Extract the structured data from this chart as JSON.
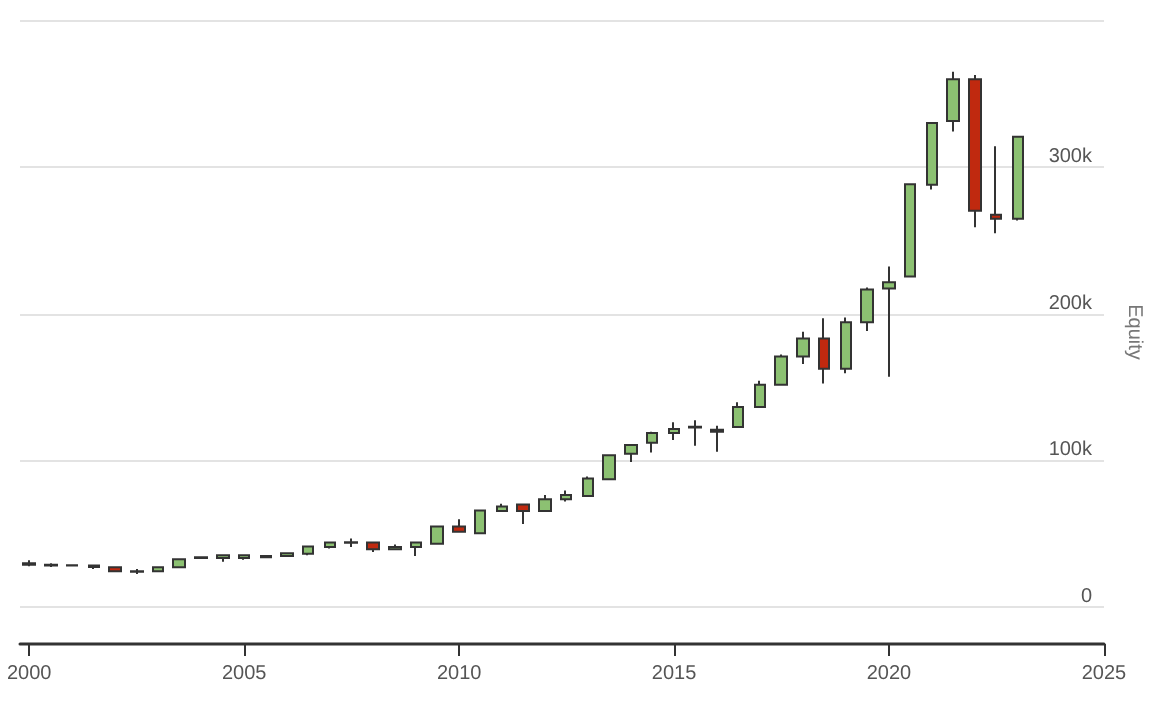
{
  "chart_data": {
    "type": "candlestick",
    "ylabel": "Equity",
    "x": [
      "2000-01",
      "2000-07",
      "2001-01",
      "2001-07",
      "2002-01",
      "2002-07",
      "2003-01",
      "2003-07",
      "2004-01",
      "2004-07",
      "2005-01",
      "2005-07",
      "2006-01",
      "2006-07",
      "2007-01",
      "2007-07",
      "2008-01",
      "2008-07",
      "2009-01",
      "2009-07",
      "2010-01",
      "2010-07",
      "2011-01",
      "2011-07",
      "2012-01",
      "2012-07",
      "2013-01",
      "2013-07",
      "2014-01",
      "2014-07",
      "2015-01",
      "2015-07",
      "2016-01",
      "2016-07",
      "2017-01",
      "2017-07",
      "2018-01",
      "2018-07",
      "2019-01",
      "2019-07",
      "2020-01",
      "2020-07",
      "2021-01",
      "2021-07",
      "2022-01",
      "2022-07",
      "2023-01"
    ],
    "ohlc": [
      [
        29000,
        32000,
        28000,
        30000
      ],
      [
        28500,
        30000,
        27500,
        29000
      ],
      [
        28500,
        29000,
        28000,
        28600
      ],
      [
        28500,
        29000,
        26000,
        27500
      ],
      [
        27300,
        27500,
        24500,
        24500
      ],
      [
        24500,
        26000,
        22700,
        24200
      ],
      [
        24500,
        27500,
        24000,
        27300
      ],
      [
        27300,
        33000,
        27000,
        32700
      ],
      [
        33500,
        34000,
        33000,
        34000
      ],
      [
        33600,
        35500,
        31000,
        35500
      ],
      [
        33600,
        35500,
        32300,
        35500
      ],
      [
        34000,
        35500,
        33600,
        35000
      ],
      [
        35000,
        36800,
        35000,
        36800
      ],
      [
        36400,
        41400,
        35500,
        41400
      ],
      [
        41000,
        44500,
        40000,
        44100
      ],
      [
        44000,
        46800,
        41000,
        44300
      ],
      [
        44100,
        44100,
        37700,
        39500
      ],
      [
        39500,
        42700,
        39500,
        41000
      ],
      [
        41000,
        44100,
        35000,
        44100
      ],
      [
        43200,
        55000,
        42700,
        55000
      ],
      [
        55000,
        60000,
        51000,
        51400
      ],
      [
        50500,
        65900,
        50500,
        65900
      ],
      [
        65500,
        70500,
        65000,
        68600
      ],
      [
        70000,
        70500,
        56800,
        65500
      ],
      [
        65500,
        76400,
        65500,
        73600
      ],
      [
        73600,
        79500,
        72000,
        76400
      ],
      [
        75800,
        89000,
        75800,
        87700
      ],
      [
        87200,
        103600,
        87200,
        103600
      ],
      [
        104600,
        110500,
        99000,
        110500
      ],
      [
        112000,
        119600,
        105500,
        118700
      ],
      [
        118700,
        126000,
        114000,
        121500
      ],
      [
        122500,
        127400,
        110000,
        123000
      ],
      [
        119600,
        123700,
        106000,
        121000
      ],
      [
        122800,
        139700,
        122800,
        136500
      ],
      [
        136500,
        154300,
        136500,
        151600
      ],
      [
        151600,
        172100,
        151600,
        170800
      ],
      [
        170800,
        187700,
        165700,
        183100
      ],
      [
        183100,
        196800,
        152500,
        162500
      ],
      [
        162500,
        197300,
        159400,
        194100
      ],
      [
        194100,
        217800,
        188100,
        216400
      ],
      [
        217200,
        232100,
        157000,
        221300
      ],
      [
        225300,
        288200,
        225300,
        288200
      ],
      [
        287800,
        329900,
        284600,
        329900
      ],
      [
        331200,
        364700,
        324000,
        359700
      ],
      [
        359700,
        362500,
        258800,
        270100
      ],
      [
        267400,
        314000,
        254800,
        264700
      ],
      [
        264700,
        320400,
        263400,
        320400
      ]
    ],
    "colors": [
      "#8cc172",
      "#8cc172",
      "#8cc172",
      "#c0290f",
      "#c0290f",
      "#c0290f",
      "#8cc172",
      "#8cc172",
      "#8cc172",
      "#8cc172",
      "#8cc172",
      "#8cc172",
      "#8cc172",
      "#8cc172",
      "#8cc172",
      "#8cc172",
      "#c0290f",
      "#8cc172",
      "#8cc172",
      "#8cc172",
      "#c0290f",
      "#8cc172",
      "#8cc172",
      "#c0290f",
      "#8cc172",
      "#8cc172",
      "#8cc172",
      "#8cc172",
      "#8cc172",
      "#8cc172",
      "#8cc172",
      "#8cc172",
      "#8cc172",
      "#8cc172",
      "#8cc172",
      "#8cc172",
      "#8cc172",
      "#c0290f",
      "#8cc172",
      "#8cc172",
      "#8cc172",
      "#8cc172",
      "#8cc172",
      "#8cc172",
      "#c0290f",
      "#c0290f",
      "#8cc172"
    ],
    "ylim": [
      -25000,
      400000
    ],
    "yticks": [
      {
        "value": 0,
        "label": "0"
      },
      {
        "value": 100000,
        "label": "100k"
      },
      {
        "value": 200000,
        "label": "200k"
      },
      {
        "value": 300000,
        "label": "300k"
      },
      {
        "value": 400000,
        "label": null
      }
    ],
    "xlim": [
      "1999-10-15",
      "2025-01-01"
    ],
    "xticks": [
      "2000",
      "2005",
      "2010",
      "2015",
      "2020",
      "2025"
    ],
    "grid": "y"
  }
}
